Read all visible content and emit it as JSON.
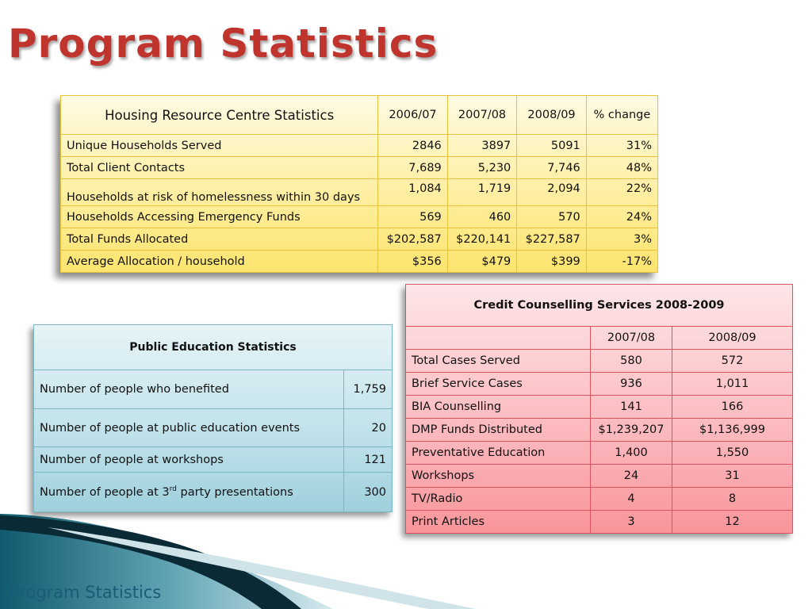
{
  "slide_title": "Program Statistics",
  "footer_title": "Program Statistics",
  "housing": {
    "title": "Housing Resource Centre Statistics",
    "columns": [
      "2006/07",
      "2007/08",
      "2008/09",
      "% change"
    ],
    "rows": [
      {
        "label": "Unique Households Served",
        "values": [
          "2846",
          "3897",
          "5091",
          "31%"
        ]
      },
      {
        "label": "Total Client Contacts",
        "values": [
          "7,689",
          "5,230",
          "7,746",
          "48%"
        ]
      },
      {
        "label": "Households at risk of homelessness within 30 days",
        "values": [
          "1,084",
          "1,719",
          "2,094",
          "22%"
        ]
      },
      {
        "label": "Households Accessing Emergency Funds",
        "values": [
          "569",
          "460",
          "570",
          "24%"
        ]
      },
      {
        "label": "Total Funds Allocated",
        "values": [
          "$202,587",
          "$220,141",
          "$227,587",
          "3%"
        ]
      },
      {
        "label": "Average Allocation / household",
        "values": [
          "$356",
          "$479",
          "$399",
          "-17%"
        ]
      }
    ]
  },
  "public_education": {
    "title": "Public Education Statistics",
    "rows": [
      {
        "label": "Number of people who benefited",
        "value": "1,759"
      },
      {
        "label": "Number of people at public education events",
        "value": "20"
      },
      {
        "label": "Number of people at workshops",
        "value": "121"
      },
      {
        "label_prefix": "Number of people at 3",
        "label_sup": "rd",
        "label_suffix": " party presentations",
        "value": "300"
      }
    ]
  },
  "credit": {
    "title": "Credit Counselling Services 2008-2009",
    "columns": [
      "2007/08",
      "2008/09"
    ],
    "rows": [
      {
        "label": "Total Cases Served",
        "values": [
          "580",
          "572"
        ]
      },
      {
        "label": "Brief Service Cases",
        "values": [
          "936",
          "1,011"
        ]
      },
      {
        "label": "BIA Counselling",
        "values": [
          "141",
          "166"
        ]
      },
      {
        "label": "DMP Funds Distributed",
        "values": [
          "$1,239,207",
          "$1,136,999"
        ]
      },
      {
        "label": "Preventative Education",
        "values": [
          "1,400",
          "1,550"
        ]
      },
      {
        "label": "Workshops",
        "values": [
          "24",
          "31"
        ]
      },
      {
        "label": "TV/Radio",
        "values": [
          "4",
          "8"
        ]
      },
      {
        "label": "Print Articles",
        "values": [
          "3",
          "12"
        ]
      }
    ]
  },
  "colors": {
    "title": "#c0342e",
    "footer": "#1b5b78",
    "housing_bg": "#fde984",
    "public_bg": "#bfe1ea",
    "credit_bg": "#fbb8bd"
  }
}
